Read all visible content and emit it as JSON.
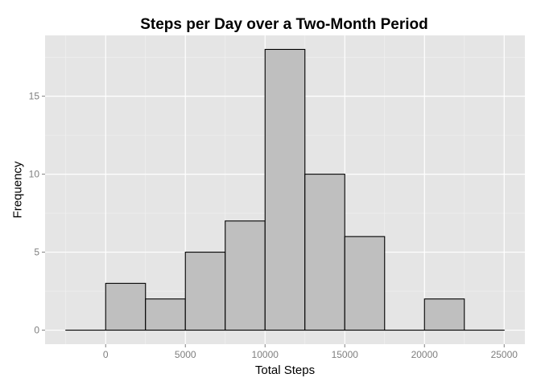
{
  "chart_data": {
    "type": "bar",
    "title": "Steps per Day over a Two-Month Period",
    "xlabel": "Total Steps",
    "ylabel": "Frequency",
    "bins": [
      {
        "start": -2500,
        "end": 0,
        "count": 0
      },
      {
        "start": 0,
        "end": 2500,
        "count": 3
      },
      {
        "start": 2500,
        "end": 5000,
        "count": 2
      },
      {
        "start": 5000,
        "end": 7500,
        "count": 5
      },
      {
        "start": 7500,
        "end": 10000,
        "count": 7
      },
      {
        "start": 10000,
        "end": 12500,
        "count": 18
      },
      {
        "start": 12500,
        "end": 15000,
        "count": 10
      },
      {
        "start": 15000,
        "end": 17500,
        "count": 6
      },
      {
        "start": 17500,
        "end": 20000,
        "count": 0
      },
      {
        "start": 20000,
        "end": 22500,
        "count": 2
      },
      {
        "start": 22500,
        "end": 25000,
        "count": 0
      }
    ],
    "xlim": [
      -3800,
      26300
    ],
    "ylim": [
      -0.9,
      18.9
    ],
    "xticks": [
      0,
      5000,
      10000,
      15000,
      20000,
      25000
    ],
    "yticks": [
      0,
      5,
      10,
      15
    ],
    "grid": true,
    "colors": {
      "panel_background": "#e5e5e5",
      "grid_major": "#ffffff",
      "grid_minor": "#f2f2f2",
      "bar_fill": "#bfbfbf",
      "bar_outline": "#000000",
      "tick_label": "#7f7f7f"
    }
  }
}
